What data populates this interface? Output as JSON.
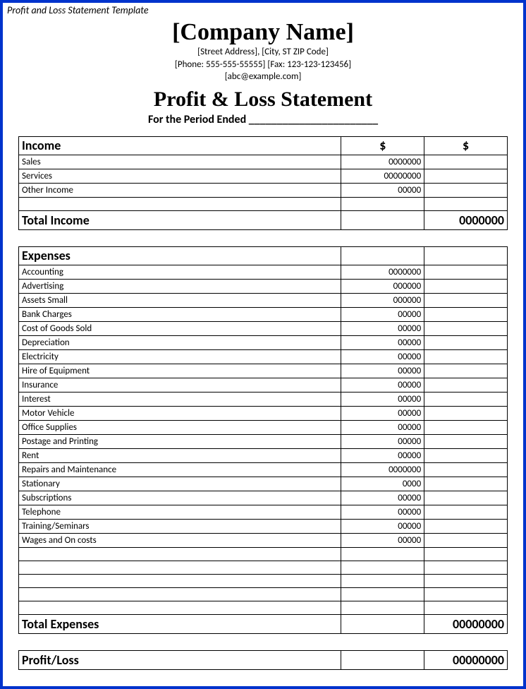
{
  "doc_title": "Profit and Loss Statement Template",
  "header": {
    "company_name": "[Company Name]",
    "address": "[Street Address], [City, ST ZIP Code]",
    "phone_fax": "[Phone: 555-555-55555] [Fax: 123-123-123456]",
    "email": "[abc@example.com]",
    "statement_title": "Profit & Loss Statement",
    "period_label": "For the Period Ended",
    "period_blank": "_______________________"
  },
  "column_heads": {
    "amt1": "$",
    "amt2": "$"
  },
  "income": {
    "section_label": "Income",
    "rows": [
      {
        "label": "Sales",
        "amt1": "0000000",
        "amt2": ""
      },
      {
        "label": "Services",
        "amt1": "00000000",
        "amt2": ""
      },
      {
        "label": "Other Income",
        "amt1": "00000",
        "amt2": ""
      }
    ],
    "total_label": "Total Income",
    "total_value": "0000000"
  },
  "expenses": {
    "section_label": "Expenses",
    "rows": [
      {
        "label": "Accounting",
        "amt1": "0000000",
        "amt2": ""
      },
      {
        "label": "Advertising",
        "amt1": "000000",
        "amt2": ""
      },
      {
        "label": "Assets Small",
        "amt1": "000000",
        "amt2": ""
      },
      {
        "label": "Bank Charges",
        "amt1": "00000",
        "amt2": ""
      },
      {
        "label": "Cost of Goods Sold",
        "amt1": "00000",
        "amt2": ""
      },
      {
        "label": "Depreciation",
        "amt1": "00000",
        "amt2": ""
      },
      {
        "label": "Electricity",
        "amt1": "00000",
        "amt2": ""
      },
      {
        "label": "Hire of Equipment",
        "amt1": "00000",
        "amt2": ""
      },
      {
        "label": "Insurance",
        "amt1": "00000",
        "amt2": ""
      },
      {
        "label": "Interest",
        "amt1": "00000",
        "amt2": ""
      },
      {
        "label": "Motor Vehicle",
        "amt1": "00000",
        "amt2": ""
      },
      {
        "label": "Office Supplies",
        "amt1": "00000",
        "amt2": ""
      },
      {
        "label": "Postage and Printing",
        "amt1": "00000",
        "amt2": ""
      },
      {
        "label": "Rent",
        "amt1": "00000",
        "amt2": ""
      },
      {
        "label": "Repairs and Maintenance",
        "amt1": "0000000",
        "amt2": ""
      },
      {
        "label": "Stationary",
        "amt1": "0000",
        "amt2": ""
      },
      {
        "label": "Subscriptions",
        "amt1": "00000",
        "amt2": ""
      },
      {
        "label": "Telephone",
        "amt1": "00000",
        "amt2": ""
      },
      {
        "label": "Training/Seminars",
        "amt1": "00000",
        "amt2": ""
      },
      {
        "label": "Wages and On costs",
        "amt1": "00000",
        "amt2": ""
      }
    ],
    "blank_row_count": 5,
    "total_label": "Total Expenses",
    "total_value": "00000000"
  },
  "profit_loss": {
    "label": "Profit/Loss",
    "value": "00000000"
  },
  "colors": {
    "frame_border": "#0033cc",
    "cell_border": "#000000",
    "background": "#ffffff",
    "text": "#000000"
  }
}
